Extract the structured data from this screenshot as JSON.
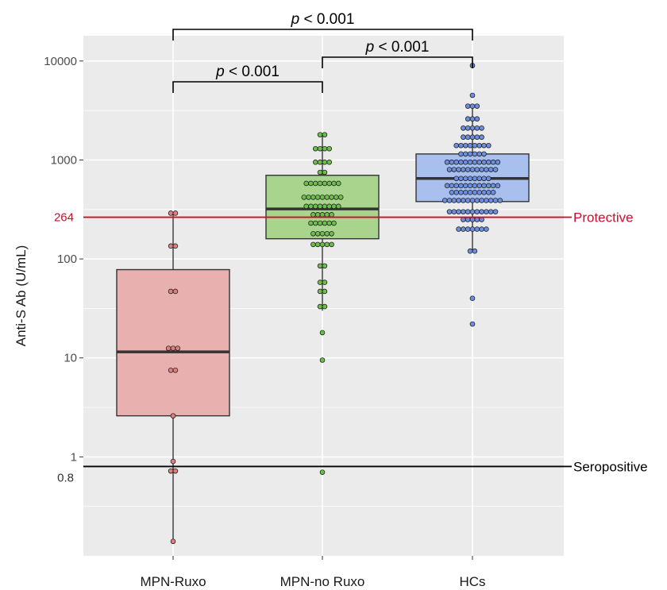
{
  "chart_data": {
    "type": "box",
    "ylabel": "Anti-S Ab (U/mL)",
    "xlabel": "",
    "yscale": "log",
    "ylim": [
      0.1,
      18000
    ],
    "y_ticks": [
      {
        "value": 1,
        "label": "1"
      },
      {
        "value": 10,
        "label": "10"
      },
      {
        "value": 100,
        "label": "100"
      },
      {
        "value": 1000,
        "label": "1000"
      },
      {
        "value": 10000,
        "label": "10000"
      }
    ],
    "y_extra_ticks": [
      {
        "value": 264,
        "label": "264",
        "color": "#c8102e"
      },
      {
        "value": 0.8,
        "label": "0.8",
        "color": "#333333"
      }
    ],
    "grid": true,
    "categories": [
      "MPN-Ruxo",
      "MPN-no Ruxo",
      "HCs"
    ],
    "groups": [
      {
        "name": "MPN-Ruxo",
        "fill": "#e8b1b0",
        "point_color": "#e07f7c",
        "box": {
          "min": 0.14,
          "q1": 2.6,
          "median": 11.5,
          "q3": 78,
          "max": 290
        },
        "points": [
          290,
          290,
          135,
          135,
          47,
          47,
          12.5,
          12.5,
          12.5,
          7.5,
          7.5,
          2.6,
          0.9,
          0.72,
          0.72,
          0.14
        ]
      },
      {
        "name": "MPN-no Ruxo",
        "fill": "#a9d48e",
        "point_color": "#6cc04a",
        "box": {
          "min": 30,
          "q1": 160,
          "median": 320,
          "q3": 700,
          "max": 1800
        },
        "points": [
          1800,
          1800,
          1300,
          1300,
          1300,
          1300,
          950,
          950,
          950,
          950,
          750,
          750,
          580,
          580,
          580,
          580,
          580,
          580,
          580,
          580,
          420,
          420,
          420,
          420,
          420,
          420,
          420,
          420,
          420,
          340,
          340,
          340,
          340,
          340,
          340,
          340,
          340,
          280,
          280,
          280,
          280,
          280,
          230,
          230,
          230,
          230,
          230,
          230,
          180,
          180,
          180,
          180,
          180,
          140,
          140,
          140,
          140,
          140,
          85,
          85,
          58,
          58,
          47,
          47,
          33,
          33,
          18,
          9.5,
          0.7
        ]
      },
      {
        "name": "HCs",
        "fill": "#a9c0ef",
        "point_color": "#6d8fe0",
        "box": {
          "min": 120,
          "q1": 380,
          "median": 650,
          "q3": 1150,
          "max": 3500
        },
        "points": [
          9000,
          4500,
          3500,
          3500,
          3500,
          2600,
          2600,
          2600,
          2100,
          2100,
          2100,
          2100,
          2100,
          1700,
          1700,
          1700,
          1700,
          1700,
          1400,
          1400,
          1400,
          1400,
          1400,
          1400,
          1400,
          1400,
          1150,
          1150,
          1150,
          1150,
          1150,
          1150,
          950,
          950,
          950,
          950,
          950,
          950,
          950,
          950,
          950,
          950,
          950,
          950,
          800,
          800,
          800,
          800,
          800,
          800,
          800,
          800,
          800,
          800,
          800,
          650,
          650,
          650,
          650,
          650,
          650,
          650,
          650,
          550,
          550,
          550,
          550,
          550,
          550,
          550,
          550,
          550,
          550,
          550,
          550,
          470,
          470,
          470,
          470,
          470,
          470,
          470,
          470,
          470,
          470,
          390,
          390,
          390,
          390,
          390,
          390,
          390,
          390,
          390,
          390,
          390,
          390,
          390,
          300,
          300,
          300,
          300,
          300,
          300,
          300,
          300,
          300,
          300,
          300,
          250,
          250,
          250,
          250,
          250,
          200,
          200,
          200,
          200,
          200,
          200,
          200,
          120,
          120,
          40,
          22
        ]
      }
    ],
    "reference_lines": [
      {
        "value": 264,
        "label": "Protective",
        "color": "#c8102e"
      },
      {
        "value": 0.8,
        "label": "Seropositive",
        "color": "#000000"
      }
    ],
    "comparisons": [
      {
        "from": "MPN-Ruxo",
        "to": "HCs",
        "label": "p < 0.001",
        "level": 3
      },
      {
        "from": "MPN-no Ruxo",
        "to": "HCs",
        "label": "p < 0.001",
        "level": 2
      },
      {
        "from": "MPN-Ruxo",
        "to": "MPN-no Ruxo",
        "label": "p < 0.001",
        "level": 1
      }
    ],
    "colors": {
      "panel": "#ebebeb",
      "grid": "#ffffff",
      "box_stroke": "#333333",
      "median": "#333333"
    }
  }
}
